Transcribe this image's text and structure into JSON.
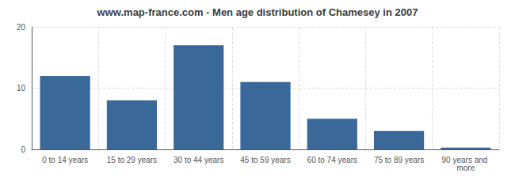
{
  "chart_data": {
    "type": "bar",
    "title": "www.map-france.com - Men age distribution of Chamesey in 2007",
    "categories": [
      "0 to 14 years",
      "15 to 29 years",
      "30 to 44 years",
      "45 to 59 years",
      "60 to 74 years",
      "75 to 89 years",
      "90 years and more"
    ],
    "values": [
      12,
      8,
      17,
      11,
      5,
      3,
      0.3
    ],
    "color": "#3a6898",
    "ylim": [
      0,
      20
    ],
    "yticks": [
      0,
      10,
      20
    ],
    "grid": true
  }
}
